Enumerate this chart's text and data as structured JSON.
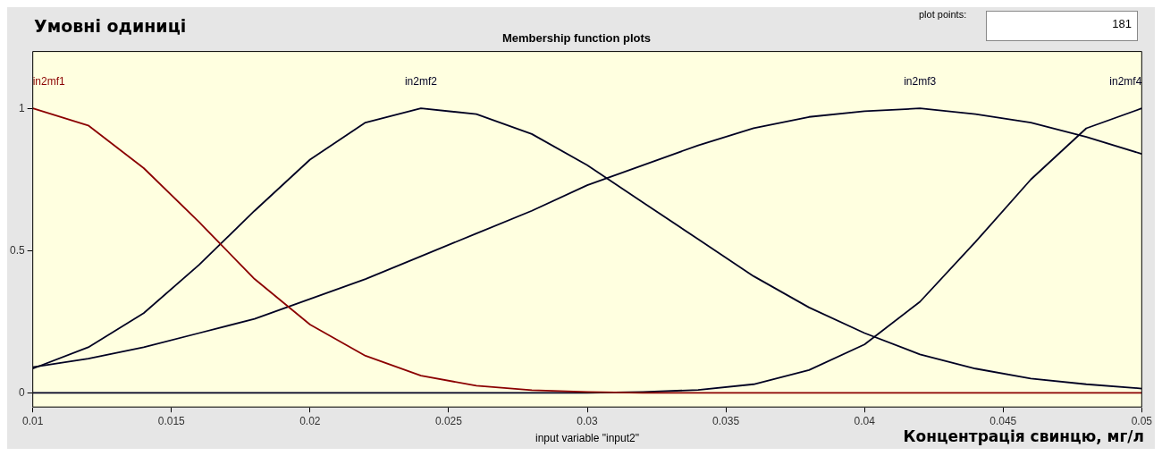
{
  "chart_data": {
    "type": "line",
    "title": "Membership function plots",
    "ylabel": "Умовні одиниці",
    "xlabel": "input variable \"input2\"",
    "annotations": [
      "Концентрація свинцю, мг/л",
      "plot points:",
      "181"
    ],
    "x": [
      0.01,
      0.012,
      0.014,
      0.016,
      0.018,
      0.02,
      0.022,
      0.024,
      0.026,
      0.028,
      0.03,
      0.032,
      0.034,
      0.036,
      0.038,
      0.04,
      0.042,
      0.044,
      0.046,
      0.048,
      0.05
    ],
    "series": [
      {
        "name": "in2mf1",
        "color": "#8b0000",
        "values": [
          1,
          0.94,
          0.79,
          0.6,
          0.4,
          0.24,
          0.13,
          0.06,
          0.025,
          0.009,
          0.003,
          0,
          0,
          0,
          0,
          0,
          0,
          0,
          0,
          0,
          0
        ]
      },
      {
        "name": "in2mf2",
        "color": "#000022",
        "values": [
          0.085,
          0.16,
          0.28,
          0.45,
          0.64,
          0.82,
          0.95,
          1,
          0.98,
          0.91,
          0.8,
          0.67,
          0.54,
          0.41,
          0.3,
          0.21,
          0.135,
          0.085,
          0.05,
          0.03,
          0.015
        ]
      },
      {
        "name": "in2mf3",
        "color": "#000022",
        "values": [
          0.09,
          0.12,
          0.16,
          0.21,
          0.26,
          0.33,
          0.4,
          0.48,
          0.56,
          0.64,
          0.73,
          0.8,
          0.87,
          0.93,
          0.97,
          0.99,
          1,
          0.98,
          0.95,
          0.9,
          0.84
        ]
      },
      {
        "name": "in2mf4",
        "color": "#000022",
        "values": [
          0,
          0,
          0,
          0,
          0,
          0,
          0,
          0,
          0,
          0,
          0,
          0.003,
          0.01,
          0.03,
          0.08,
          0.17,
          0.32,
          0.53,
          0.75,
          0.93,
          1
        ]
      }
    ],
    "xlim": [
      0.01,
      0.05
    ],
    "ylim": [
      -0.05,
      1.2
    ],
    "xticks": [
      0.01,
      0.015,
      0.02,
      0.025,
      0.03,
      0.035,
      0.04,
      0.045,
      0.05
    ],
    "yticks": [
      0,
      0.5,
      1
    ],
    "line_style": "solid",
    "marker": "none"
  }
}
